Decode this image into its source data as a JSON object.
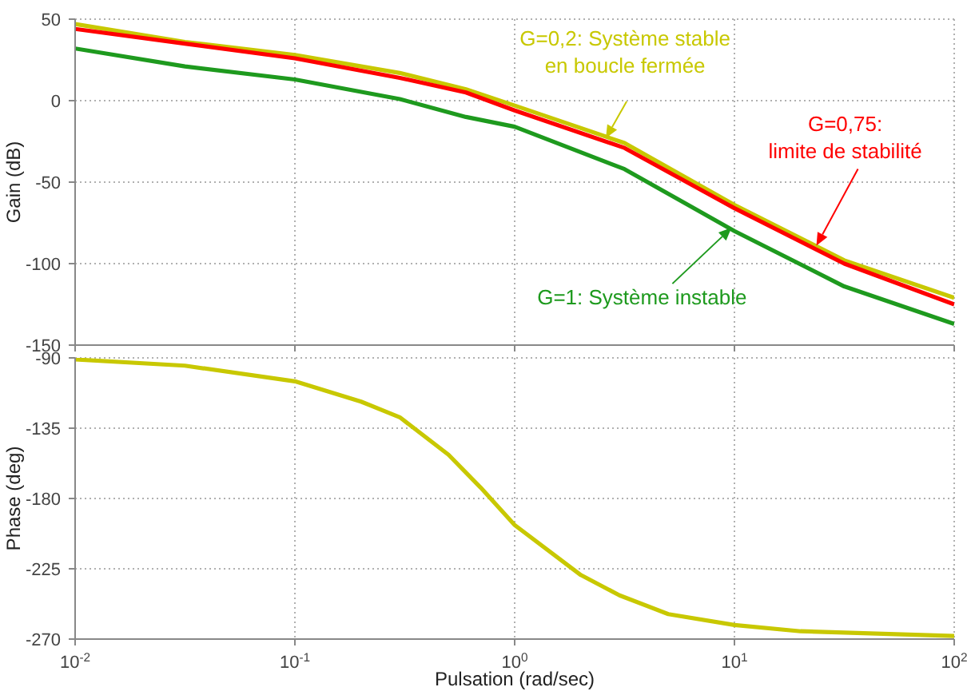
{
  "chart_data": [
    {
      "type": "line",
      "ylabel": "Gain (dB)",
      "xlim": [
        0.01,
        100
      ],
      "xticks": [
        {
          "value": 0.01,
          "label": null
        },
        {
          "value": 0.1,
          "label": null
        },
        {
          "value": 1,
          "label": null
        },
        {
          "value": 10,
          "label": null
        },
        {
          "value": 100,
          "label": null
        }
      ],
      "ylim": [
        -150,
        50
      ],
      "yticks": [
        -150,
        -100,
        -50,
        0,
        50
      ],
      "log": "x",
      "grid": true,
      "tick_labels": "y",
      "x": [
        0.01,
        0.0316,
        0.1,
        0.3,
        0.6,
        1,
        3.16,
        10,
        31.6,
        100
      ],
      "series": [
        {
          "color": "#c8c800",
          "values": [
            47,
            36,
            28,
            17,
            7,
            -3,
            -26,
            -64,
            -98,
            -121
          ]
        },
        {
          "color": "#ff0000",
          "values": [
            44,
            35,
            26,
            14,
            5,
            -6,
            -29,
            -66,
            -100,
            -125
          ]
        },
        {
          "color": "#1e9a1e",
          "values": [
            32,
            21,
            13,
            1,
            -10,
            -16,
            -42,
            -80,
            -114,
            -137
          ]
        }
      ],
      "annotations": [
        {
          "text": "G=0,2: Système stable\nen boucle fermée",
          "x": 2.6,
          "y": -23
        },
        {
          "text": "G=0,75:\nlimite de stabilité",
          "x": 23.6,
          "y": -89
        },
        {
          "text": "G=1: Système instable",
          "x": 9.7,
          "y": -78
        }
      ]
    },
    {
      "type": "line",
      "ylabel": "Phase (deg)",
      "xlabel": "Pulsation  (rad/sec)",
      "xlim": [
        0.01,
        100
      ],
      "xticks": [
        {
          "value": 0.01,
          "label": "10$^{-2}$"
        },
        {
          "value": 0.1,
          "label": "10$^{-1}$"
        },
        {
          "value": 1,
          "label": "10$^{0}$"
        },
        {
          "value": 10,
          "label": "10$^{1}$"
        },
        {
          "value": 100,
          "label": "10$^{2}$"
        }
      ],
      "ylim": [
        -270,
        -90
      ],
      "yticks": [
        -270,
        -225,
        -180,
        -135,
        -90
      ],
      "log": "x",
      "grid": true,
      "x": [
        0.01,
        0.0316,
        0.1,
        0.2,
        0.3,
        0.5,
        0.7,
        1,
        2,
        3,
        5,
        10,
        20,
        100
      ],
      "series": [
        {
          "color": "#c8c800",
          "values": [
            -91,
            -95,
            -105,
            -118,
            -128,
            -152,
            -173,
            -197,
            -229,
            -242,
            -254,
            -261,
            -265,
            -268
          ]
        }
      ]
    }
  ]
}
